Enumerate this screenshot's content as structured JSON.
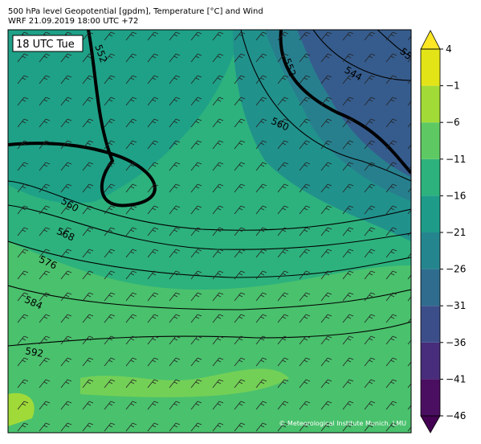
{
  "header": {
    "title": "500 hPa level Geopotential [gpdm], Temperature [°C] and Wind",
    "subtitle": "WRF 21.09.2019 18:00 UTC +72"
  },
  "map": {
    "time_label": "18 UTC Tue",
    "credit": "© Meteorological Institute Munich, LMU",
    "contour_labels": [
      552,
      552,
      544,
      55,
      560,
      560,
      568,
      576,
      584,
      592
    ]
  },
  "colorbar": {
    "ticks": [
      4,
      -1,
      -6,
      -11,
      -16,
      -21,
      -26,
      -31,
      -36,
      -41,
      -46
    ],
    "colors": [
      "#4b0f62",
      "#472d7b",
      "#3b4e8a",
      "#2f6c8e",
      "#25858e",
      "#1e9c89",
      "#2db27d",
      "#5ec962",
      "#a2da37",
      "#e3e418"
    ],
    "over_color": "#fde725",
    "under_color": "#440154"
  }
}
